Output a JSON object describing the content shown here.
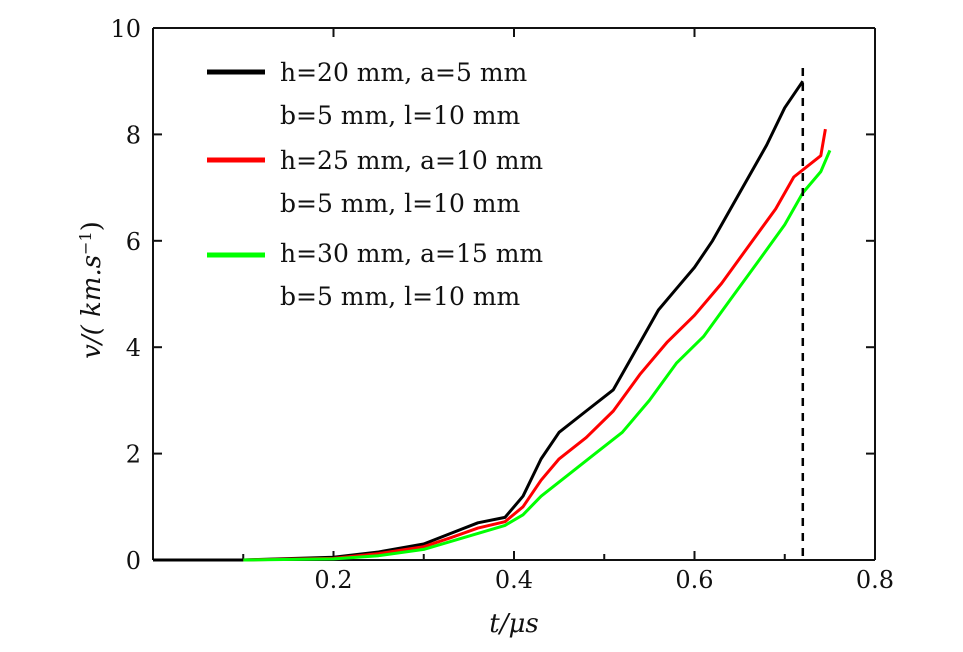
{
  "chart_data": {
    "type": "line",
    "xlabel": "t/μs",
    "ylabel_parts": [
      "v/( km.s",
      "−1",
      ")"
    ],
    "xlim": [
      0.0,
      0.8
    ],
    "ylim": [
      0,
      10
    ],
    "x_ticks": [
      0.2,
      0.4,
      0.6,
      0.8
    ],
    "x_tick_labels": [
      "0.2",
      "0.4",
      "0.6",
      "0.8"
    ],
    "y_ticks": [
      0,
      2,
      4,
      6,
      8,
      10
    ],
    "y_tick_labels": [
      "0",
      "2",
      "4",
      "6",
      "8",
      "10"
    ],
    "grid": false,
    "legend_position": "top-left",
    "annotations": [
      {
        "type": "vertical-dashed-line",
        "x": 0.72
      }
    ],
    "series": [
      {
        "name_line1": "h=20 mm, a=5 mm",
        "name_line2": "b=5 mm, l=10 mm",
        "color": "#000000",
        "points": [
          [
            0.0,
            0.0
          ],
          [
            0.1,
            0.0
          ],
          [
            0.2,
            0.05
          ],
          [
            0.25,
            0.15
          ],
          [
            0.3,
            0.3
          ],
          [
            0.33,
            0.5
          ],
          [
            0.36,
            0.7
          ],
          [
            0.39,
            0.8
          ],
          [
            0.41,
            1.2
          ],
          [
            0.43,
            1.9
          ],
          [
            0.45,
            2.4
          ],
          [
            0.48,
            2.8
          ],
          [
            0.51,
            3.2
          ],
          [
            0.54,
            4.1
          ],
          [
            0.56,
            4.7
          ],
          [
            0.58,
            5.1
          ],
          [
            0.6,
            5.5
          ],
          [
            0.62,
            6.0
          ],
          [
            0.65,
            6.9
          ],
          [
            0.68,
            7.8
          ],
          [
            0.7,
            8.5
          ],
          [
            0.72,
            9.0
          ]
        ]
      },
      {
        "name_line1": "h=25 mm, a=10 mm",
        "name_line2": "b=5 mm, l=10 mm",
        "color": "#ff0000",
        "points": [
          [
            0.1,
            0.0
          ],
          [
            0.2,
            0.03
          ],
          [
            0.25,
            0.12
          ],
          [
            0.3,
            0.25
          ],
          [
            0.33,
            0.42
          ],
          [
            0.36,
            0.6
          ],
          [
            0.39,
            0.72
          ],
          [
            0.41,
            1.0
          ],
          [
            0.43,
            1.5
          ],
          [
            0.45,
            1.9
          ],
          [
            0.48,
            2.3
          ],
          [
            0.51,
            2.8
          ],
          [
            0.54,
            3.5
          ],
          [
            0.57,
            4.1
          ],
          [
            0.6,
            4.6
          ],
          [
            0.63,
            5.2
          ],
          [
            0.66,
            5.9
          ],
          [
            0.69,
            6.6
          ],
          [
            0.71,
            7.2
          ],
          [
            0.74,
            7.6
          ],
          [
            0.745,
            8.1
          ]
        ]
      },
      {
        "name_line1": "h=30 mm, a=15 mm",
        "name_line2": "b=5 mm, l=10 mm",
        "color": "#00ff00",
        "points": [
          [
            0.1,
            0.0
          ],
          [
            0.2,
            0.02
          ],
          [
            0.25,
            0.08
          ],
          [
            0.3,
            0.2
          ],
          [
            0.33,
            0.35
          ],
          [
            0.36,
            0.5
          ],
          [
            0.39,
            0.65
          ],
          [
            0.41,
            0.85
          ],
          [
            0.43,
            1.2
          ],
          [
            0.46,
            1.6
          ],
          [
            0.49,
            2.0
          ],
          [
            0.52,
            2.4
          ],
          [
            0.55,
            3.0
          ],
          [
            0.58,
            3.7
          ],
          [
            0.61,
            4.2
          ],
          [
            0.64,
            4.9
          ],
          [
            0.67,
            5.6
          ],
          [
            0.7,
            6.3
          ],
          [
            0.72,
            6.9
          ],
          [
            0.74,
            7.3
          ],
          [
            0.75,
            7.7
          ]
        ]
      }
    ]
  }
}
